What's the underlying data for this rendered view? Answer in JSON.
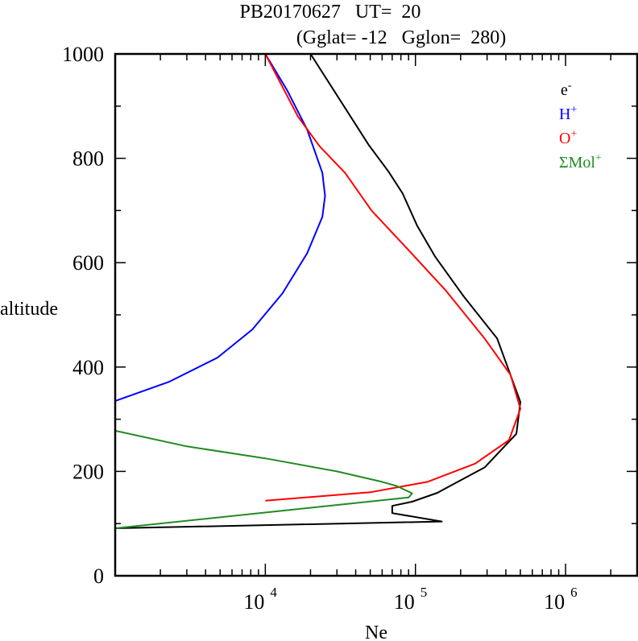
{
  "chart_data": {
    "type": "line",
    "title": "PB20170627   UT=  20",
    "subtitle": "(Gglat= -12   Gglon=  280)",
    "xlabel": "Ne",
    "ylabel": "altitude",
    "xscale": "log",
    "xlim": [
      1000,
      3000000
    ],
    "ylim": [
      0,
      1000
    ],
    "xticks": [
      {
        "value": 10000,
        "base": "10",
        "exp": "4"
      },
      {
        "value": 100000,
        "base": "10",
        "exp": "5"
      },
      {
        "value": 1000000,
        "base": "10",
        "exp": "6"
      }
    ],
    "yticks": [
      {
        "value": 0,
        "label": "0"
      },
      {
        "value": 200,
        "label": "200"
      },
      {
        "value": 400,
        "label": "400"
      },
      {
        "value": 600,
        "label": "600"
      },
      {
        "value": 800,
        "label": "800"
      },
      {
        "value": 1000,
        "label": "1000"
      }
    ],
    "grid": false,
    "legend_position": "top-right",
    "series": [
      {
        "name": "e-",
        "label_base": "e",
        "label_sup": "-",
        "color": "#000000",
        "points": [
          [
            20000,
            1000
          ],
          [
            49000,
            825
          ],
          [
            66000,
            775
          ],
          [
            82000,
            733
          ],
          [
            103000,
            670
          ],
          [
            135000,
            612
          ],
          [
            210000,
            535
          ],
          [
            350000,
            455
          ],
          [
            500000,
            333
          ],
          [
            470000,
            272
          ],
          [
            290000,
            208
          ],
          [
            165000,
            170
          ],
          [
            140000,
            159
          ],
          [
            95000,
            142
          ],
          [
            70000,
            134
          ],
          [
            70000,
            120
          ],
          [
            150000,
            104
          ],
          [
            1000,
            91
          ]
        ]
      },
      {
        "name": "H+",
        "label_base": "H",
        "label_sup": "+",
        "color": "#0000ff",
        "points": [
          [
            10000,
            1000
          ],
          [
            14000,
            930
          ],
          [
            19000,
            855
          ],
          [
            24000,
            772
          ],
          [
            25000,
            728
          ],
          [
            24000,
            688
          ],
          [
            19000,
            618
          ],
          [
            13000,
            541
          ],
          [
            8200,
            472
          ],
          [
            4800,
            418
          ],
          [
            2300,
            372
          ],
          [
            1000,
            335
          ]
        ]
      },
      {
        "name": "O+",
        "label_base": "O",
        "label_sup": "+",
        "color": "#ff0000",
        "points": [
          [
            10000,
            1000
          ],
          [
            16500,
            880
          ],
          [
            23000,
            823
          ],
          [
            34000,
            772
          ],
          [
            51000,
            700
          ],
          [
            88000,
            627
          ],
          [
            160000,
            546
          ],
          [
            290000,
            454
          ],
          [
            430000,
            385
          ],
          [
            500000,
            320
          ],
          [
            420000,
            260
          ],
          [
            250000,
            215
          ],
          [
            120000,
            180
          ],
          [
            50000,
            160
          ],
          [
            10000,
            144
          ]
        ]
      },
      {
        "name": "ΣMol+",
        "label_base": "ΣMol",
        "label_sup": "+",
        "color": "#228b22",
        "points": [
          [
            1000,
            278
          ],
          [
            3000,
            248
          ],
          [
            10000,
            225
          ],
          [
            30000,
            200
          ],
          [
            60000,
            180
          ],
          [
            75000,
            172
          ],
          [
            95000,
            158
          ],
          [
            90000,
            150
          ],
          [
            1000,
            91
          ]
        ]
      }
    ]
  }
}
